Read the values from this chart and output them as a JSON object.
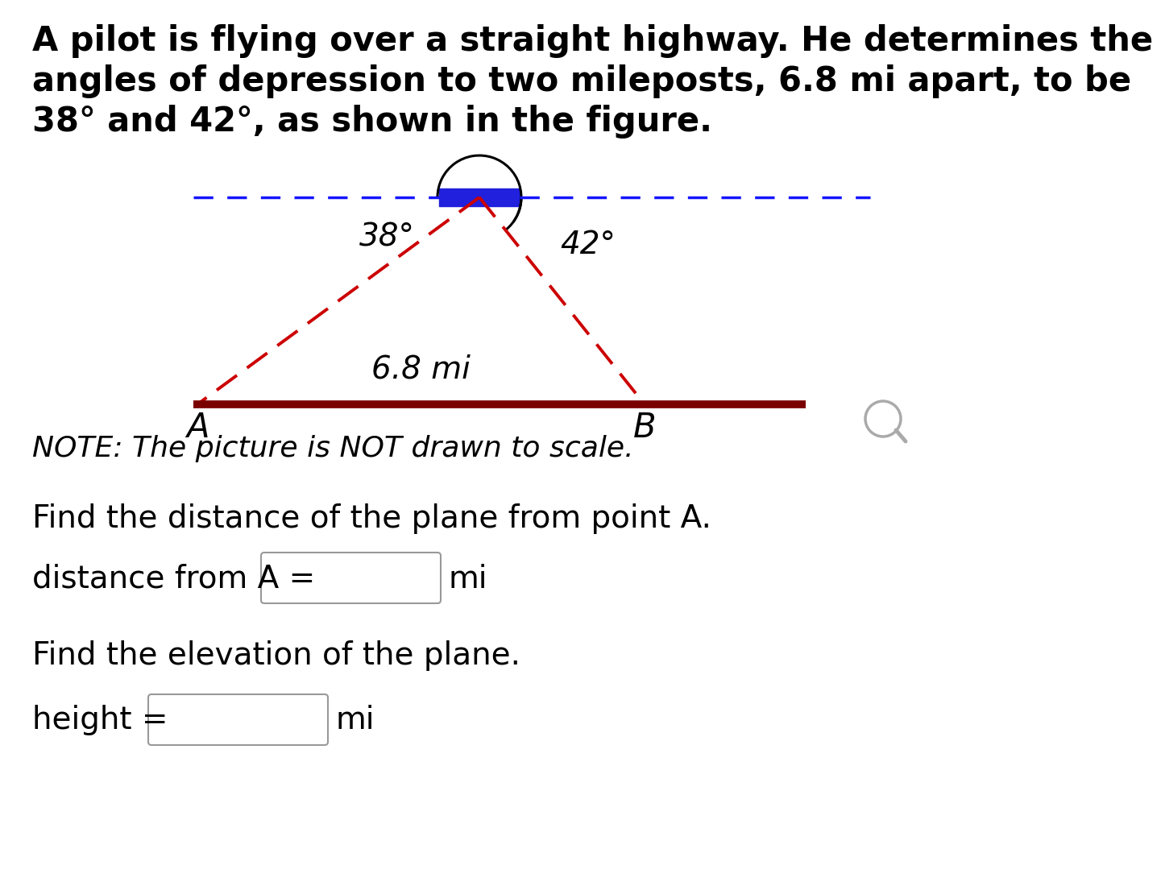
{
  "title_line1": "A pilot is flying over a straight highway. He determines the",
  "title_line2": "angles of depression to two mileposts, 6.8 mi apart, to be",
  "title_line3": "38° and 42°, as shown in the figure.",
  "angle1_label": "38°",
  "angle2_label": "42°",
  "distance_label": "6.8 mi",
  "label_A": "A",
  "label_B": "B",
  "note_text": "NOTE: The picture is NOT drawn to scale.",
  "question1": "Find the distance of the plane from point A.",
  "question2": "distance from A =",
  "unit1": "mi",
  "question3": "Find the elevation of the plane.",
  "question4": "height =",
  "unit2": "mi",
  "bg_color": "#ffffff",
  "dashed_blue_color": "#1515ff",
  "plane_rect_color": "#2020dd",
  "red_dashed_color": "#cc0000",
  "ground_line_color": "#7a0000",
  "text_color": "#000000",
  "fig_label_fontsize": 26,
  "title_fontsize": 30,
  "note_fontsize": 26,
  "question_fontsize": 28,
  "magnifier_color": "#aaaaaa"
}
